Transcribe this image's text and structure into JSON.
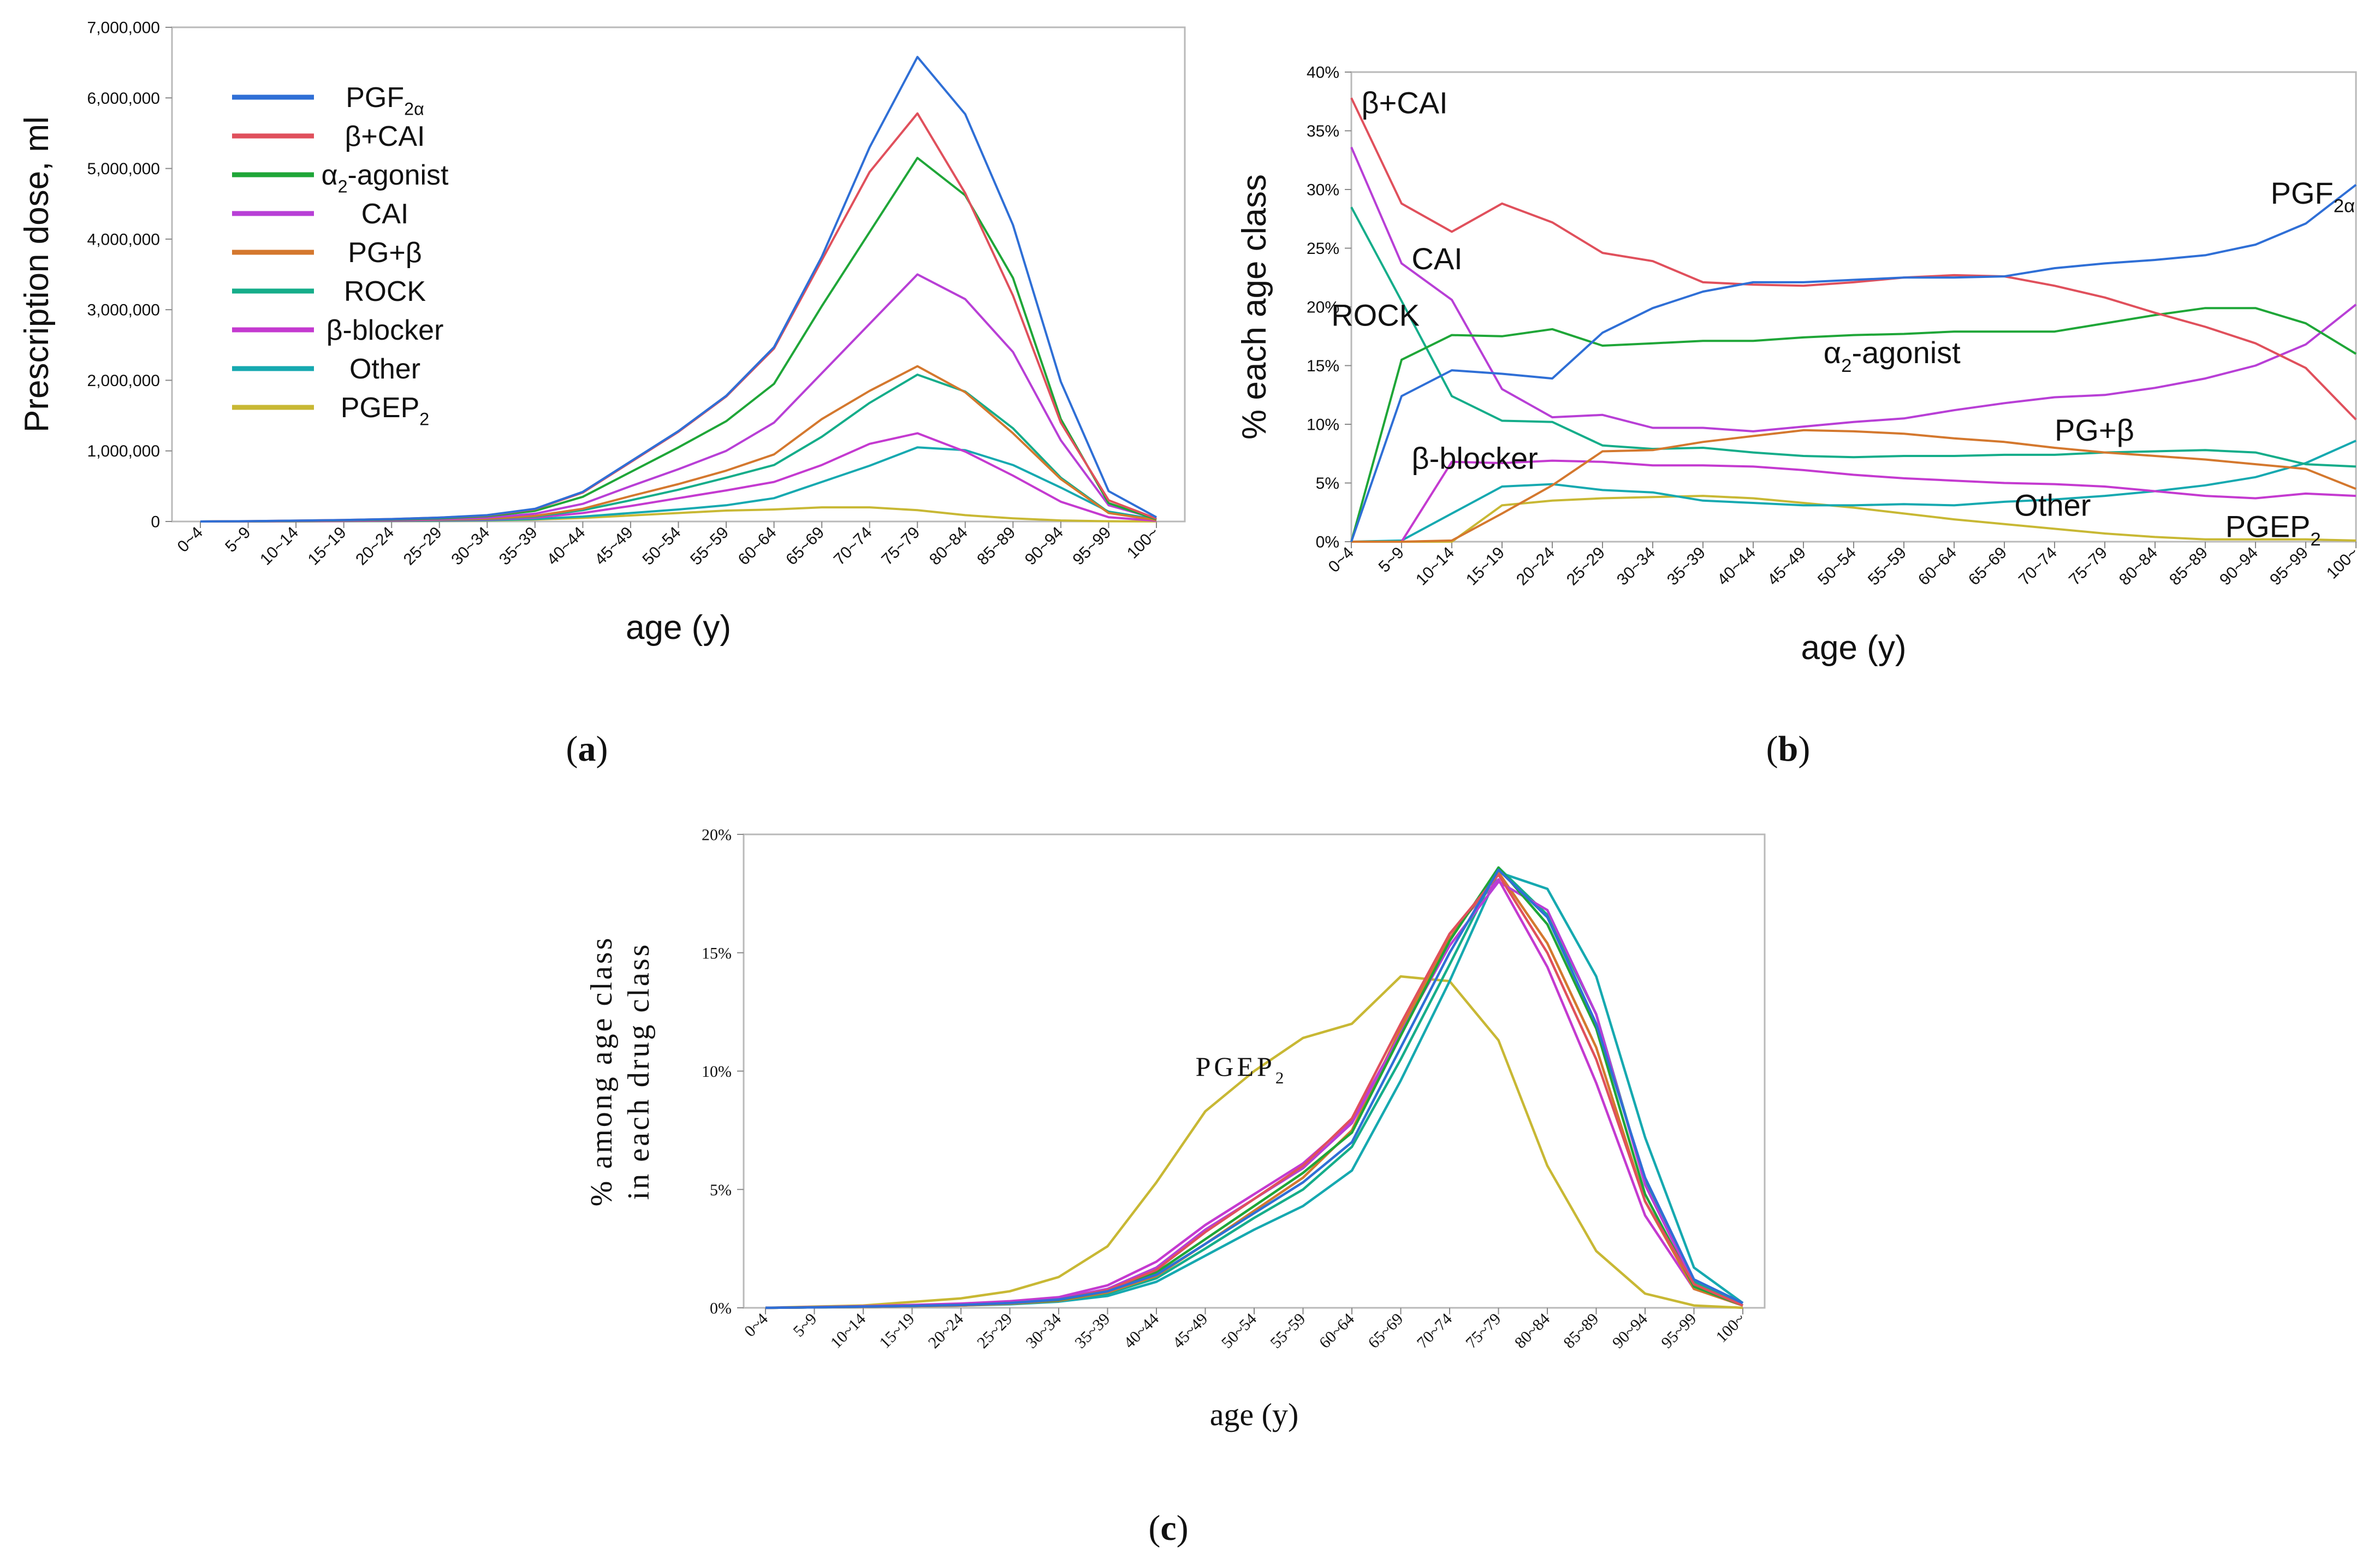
{
  "figure": {
    "panel_labels": [
      "(a)",
      "(b)",
      "(c)"
    ],
    "panel_letters": [
      "a",
      "b",
      "c"
    ]
  },
  "colors": {
    "PGF2a": "#2f6fd6",
    "BCAI": "#e0505c",
    "a2agonist": "#1fa638",
    "CAI": "#b83fd6",
    "PGB": "#d4782e",
    "ROCK": "#15ad8a",
    "bblocker": "#c43ad0",
    "Other": "#16a9b0",
    "PGEP2": "#c8b834"
  },
  "chart_data": [
    {
      "id": "a",
      "type": "line",
      "xlabel": "age (y)",
      "ylabel": "Prescription dose, ml",
      "ylim": [
        0,
        7000000
      ],
      "yticks": [
        0,
        1000000,
        2000000,
        3000000,
        4000000,
        5000000,
        6000000,
        7000000
      ],
      "ytick_labels": [
        "0",
        "1,000,000",
        "2,000,000",
        "3,000,000",
        "4,000,000",
        "5,000,000",
        "6,000,000",
        "7,000,000"
      ],
      "categories": [
        "0~4",
        "5~9",
        "10~14",
        "15~19",
        "20~24",
        "25~29",
        "30~34",
        "35~39",
        "40~44",
        "45~49",
        "50~54",
        "55~59",
        "60~64",
        "65~69",
        "70~74",
        "75~79",
        "80~84",
        "85~89",
        "90~94",
        "95~99",
        "100~"
      ],
      "legend": {
        "position": "top-left",
        "entries": [
          {
            "key": "PGF2a",
            "label": "PGF",
            "sub": "2α"
          },
          {
            "key": "BCAI",
            "label": "β+CAI",
            "sub": ""
          },
          {
            "key": "a2agonist",
            "label": "α",
            "sub": "2",
            "label_after": "-agonist"
          },
          {
            "key": "CAI",
            "label": "CAI",
            "sub": ""
          },
          {
            "key": "PGB",
            "label": "PG+β",
            "sub": ""
          },
          {
            "key": "ROCK",
            "label": "ROCK",
            "sub": ""
          },
          {
            "key": "bblocker",
            "label": "β-blocker",
            "sub": ""
          },
          {
            "key": "Other",
            "label": "Other",
            "sub": ""
          },
          {
            "key": "PGEP2",
            "label": "PGEP",
            "sub": "2"
          }
        ]
      },
      "series": [
        {
          "key": "PGF2a",
          "values": [
            0,
            5000,
            12000,
            22000,
            35000,
            55000,
            90000,
            180000,
            420000,
            850000,
            1280000,
            1780000,
            2470000,
            3750000,
            5300000,
            6580000,
            5770000,
            4200000,
            1980000,
            430000,
            60000
          ]
        },
        {
          "key": "BCAI",
          "values": [
            0,
            5000,
            12000,
            22000,
            35000,
            55000,
            85000,
            175000,
            410000,
            840000,
            1270000,
            1770000,
            2450000,
            3700000,
            4950000,
            5780000,
            4650000,
            3200000,
            1400000,
            300000,
            40000
          ]
        },
        {
          "key": "a2agonist",
          "values": [
            0,
            4000,
            10000,
            18000,
            28000,
            45000,
            75000,
            150000,
            350000,
            700000,
            1050000,
            1420000,
            1950000,
            3050000,
            4100000,
            5150000,
            4620000,
            3450000,
            1450000,
            260000,
            30000
          ]
        },
        {
          "key": "CAI",
          "values": [
            0,
            3000,
            7000,
            12000,
            20000,
            32000,
            55000,
            110000,
            250000,
            500000,
            740000,
            1000000,
            1400000,
            2100000,
            2800000,
            3500000,
            3150000,
            2400000,
            1150000,
            230000,
            40000
          ]
        },
        {
          "key": "PGB",
          "values": [
            0,
            2000,
            5000,
            10000,
            16000,
            26000,
            40000,
            80000,
            180000,
            360000,
            530000,
            720000,
            950000,
            1450000,
            1850000,
            2200000,
            1830000,
            1250000,
            600000,
            120000,
            20000
          ]
        },
        {
          "key": "ROCK",
          "values": [
            0,
            2000,
            5000,
            9000,
            14000,
            22000,
            35000,
            70000,
            160000,
            300000,
            450000,
            620000,
            800000,
            1200000,
            1680000,
            2080000,
            1840000,
            1320000,
            620000,
            130000,
            20000
          ]
        },
        {
          "key": "bblocker",
          "values": [
            0,
            1500,
            3500,
            6000,
            10000,
            16000,
            26000,
            55000,
            120000,
            220000,
            330000,
            440000,
            560000,
            800000,
            1100000,
            1250000,
            990000,
            650000,
            280000,
            60000,
            10000
          ]
        },
        {
          "key": "Other",
          "values": [
            0,
            1000,
            2500,
            4500,
            7000,
            11000,
            18000,
            35000,
            70000,
            120000,
            170000,
            230000,
            330000,
            560000,
            790000,
            1050000,
            1010000,
            800000,
            480000,
            140000,
            30000
          ]
        },
        {
          "key": "PGEP2",
          "values": [
            0,
            1000,
            2000,
            3000,
            5000,
            8000,
            14000,
            28000,
            50000,
            85000,
            120000,
            155000,
            170000,
            200000,
            200000,
            160000,
            90000,
            45000,
            15000,
            3000,
            500
          ]
        }
      ]
    },
    {
      "id": "b",
      "type": "line",
      "xlabel": "age (y)",
      "ylabel": "% each age class",
      "ylim": [
        0,
        40
      ],
      "yticks": [
        0,
        5,
        10,
        15,
        20,
        25,
        30,
        35,
        40
      ],
      "ytick_labels": [
        "0%",
        "5%",
        "10%",
        "15%",
        "20%",
        "25%",
        "30%",
        "35%",
        "40%"
      ],
      "categories": [
        "0~4",
        "5~9",
        "10~14",
        "15~19",
        "20~24",
        "25~29",
        "30~34",
        "35~39",
        "40~44",
        "45~49",
        "50~54",
        "55~59",
        "60~64",
        "65~69",
        "70~74",
        "75~79",
        "80~84",
        "85~89",
        "90~94",
        "95~99",
        "100~"
      ],
      "annotations": [
        {
          "key": "BCAI",
          "text": "β+CAI",
          "sub": "",
          "x": 0.2,
          "y": 36.5
        },
        {
          "key": "CAI",
          "text": "CAI",
          "sub": "",
          "x": 1.2,
          "y": 23.2
        },
        {
          "key": "ROCK",
          "text": "ROCK",
          "sub": "",
          "x": -0.4,
          "y": 18.4
        },
        {
          "key": "a2agonist",
          "text": "α",
          "sub": "2",
          "text_after": "-agonist",
          "x": 9.4,
          "y": 15.2
        },
        {
          "key": "bblocker",
          "text": "β-blocker",
          "sub": "",
          "x": 1.2,
          "y": 6.2
        },
        {
          "key": "PGB",
          "text": "PG+β",
          "sub": "",
          "x": 14.0,
          "y": 8.6
        },
        {
          "key": "Other",
          "text": "Other",
          "sub": "",
          "x": 13.2,
          "y": 2.2
        },
        {
          "key": "PGF2a",
          "text": "PGF",
          "sub": "2α",
          "x": 18.3,
          "y": 28.8
        },
        {
          "key": "PGEP2",
          "text": "PGEP",
          "sub": "2",
          "x": 17.4,
          "y": 0.4
        }
      ],
      "series": [
        {
          "key": "PGF2a",
          "values": [
            0,
            12.4,
            14.6,
            14.3,
            13.9,
            17.8,
            19.9,
            21.3,
            22.1,
            22.1,
            22.3,
            22.5,
            22.5,
            22.6,
            23.3,
            23.7,
            24.0,
            24.4,
            25.3,
            27.1,
            30.4
          ]
        },
        {
          "key": "BCAI",
          "values": [
            37.8,
            28.8,
            26.4,
            28.8,
            27.2,
            24.6,
            23.9,
            22.1,
            21.9,
            21.8,
            22.1,
            22.5,
            22.7,
            22.6,
            21.8,
            20.8,
            19.5,
            18.3,
            16.9,
            14.8,
            10.4
          ]
        },
        {
          "key": "a2agonist",
          "values": [
            0,
            15.5,
            17.6,
            17.5,
            18.1,
            16.7,
            16.9,
            17.1,
            17.1,
            17.4,
            17.6,
            17.7,
            17.9,
            17.9,
            17.9,
            18.6,
            19.3,
            19.9,
            19.9,
            18.6,
            16.0
          ]
        },
        {
          "key": "CAI",
          "values": [
            33.6,
            23.7,
            20.6,
            13.0,
            10.6,
            10.8,
            9.7,
            9.7,
            9.4,
            9.8,
            10.2,
            10.5,
            11.2,
            11.8,
            12.3,
            12.5,
            13.1,
            13.9,
            15.0,
            16.8,
            20.2
          ]
        },
        {
          "key": "PGB",
          "values": [
            0,
            0,
            0.1,
            2.4,
            4.8,
            7.7,
            7.8,
            8.5,
            9.0,
            9.5,
            9.4,
            9.2,
            8.8,
            8.5,
            8.0,
            7.6,
            7.3,
            7.0,
            6.6,
            6.2,
            4.5
          ]
        },
        {
          "key": "ROCK",
          "values": [
            28.5,
            20.5,
            12.4,
            10.3,
            10.2,
            8.2,
            7.9,
            8.0,
            7.6,
            7.3,
            7.2,
            7.3,
            7.3,
            7.4,
            7.4,
            7.6,
            7.7,
            7.8,
            7.6,
            6.6,
            6.4
          ]
        },
        {
          "key": "bblocker",
          "values": [
            0,
            0,
            6.8,
            6.7,
            6.9,
            6.8,
            6.5,
            6.5,
            6.4,
            6.1,
            5.7,
            5.4,
            5.2,
            5.0,
            4.9,
            4.7,
            4.3,
            3.9,
            3.7,
            4.1,
            3.9
          ]
        },
        {
          "key": "Other",
          "values": [
            0,
            0.1,
            2.4,
            4.7,
            4.9,
            4.4,
            4.2,
            3.5,
            3.3,
            3.1,
            3.1,
            3.2,
            3.1,
            3.4,
            3.6,
            3.9,
            4.3,
            4.8,
            5.5,
            6.7,
            8.6
          ]
        },
        {
          "key": "PGEP2",
          "values": [
            0,
            0,
            0,
            3.1,
            3.5,
            3.7,
            3.8,
            3.9,
            3.7,
            3.3,
            2.9,
            2.4,
            1.9,
            1.5,
            1.1,
            0.7,
            0.4,
            0.2,
            0.2,
            0.2,
            0.1
          ]
        }
      ]
    },
    {
      "id": "c",
      "type": "line",
      "xlabel": "age (y)",
      "ylabel_line1": "% among age class",
      "ylabel_line2": "in each drug class",
      "ylim": [
        0,
        20
      ],
      "yticks": [
        0,
        5,
        10,
        15,
        20
      ],
      "ytick_labels": [
        "0%",
        "5%",
        "10%",
        "15%",
        "20%"
      ],
      "categories": [
        "0~4",
        "5~9",
        "10~14",
        "15~19",
        "20~24",
        "25~29",
        "30~34",
        "35~39",
        "40~44",
        "45~49",
        "50~54",
        "55~59",
        "60~64",
        "65~69",
        "70~74",
        "75~79",
        "80~84",
        "85~89",
        "90~94",
        "95~99",
        "100~"
      ],
      "annotations": [
        {
          "key": "PGEP2",
          "text": "PGEP",
          "sub": "2",
          "x": 8.8,
          "y": 9.8
        }
      ],
      "series": [
        {
          "key": "PGF2a",
          "values": [
            0,
            0.02,
            0.05,
            0.08,
            0.12,
            0.2,
            0.35,
            0.7,
            1.4,
            2.7,
            4.0,
            5.3,
            7.0,
            11.0,
            15.0,
            18.5,
            16.5,
            12.0,
            5.5,
            1.2,
            0.2
          ]
        },
        {
          "key": "BCAI",
          "values": [
            0,
            0.02,
            0.05,
            0.08,
            0.12,
            0.2,
            0.35,
            0.75,
            1.6,
            3.2,
            4.6,
            6.0,
            8.0,
            12.0,
            15.8,
            18.3,
            15.0,
            10.5,
            4.5,
            1.0,
            0.1
          ]
        },
        {
          "key": "a2agonist",
          "values": [
            0,
            0.02,
            0.05,
            0.08,
            0.12,
            0.2,
            0.33,
            0.7,
            1.5,
            2.9,
            4.3,
            5.7,
            7.4,
            11.5,
            15.5,
            18.6,
            16.2,
            11.8,
            4.8,
            0.9,
            0.1
          ]
        },
        {
          "key": "CAI",
          "values": [
            0,
            0.03,
            0.06,
            0.1,
            0.14,
            0.22,
            0.4,
            0.8,
            1.7,
            3.3,
            4.6,
            5.9,
            7.8,
            11.6,
            15.3,
            18.0,
            16.8,
            12.4,
            5.2,
            1.0,
            0.1
          ]
        },
        {
          "key": "PGB",
          "values": [
            0,
            0.02,
            0.04,
            0.07,
            0.1,
            0.18,
            0.3,
            0.65,
            1.35,
            2.7,
            4.1,
            5.5,
            7.5,
            11.8,
            15.6,
            18.4,
            15.4,
            11.0,
            4.5,
            0.8,
            0.1
          ]
        },
        {
          "key": "ROCK",
          "values": [
            0,
            0.02,
            0.04,
            0.07,
            0.1,
            0.17,
            0.3,
            0.6,
            1.25,
            2.5,
            3.8,
            5.0,
            6.8,
            10.5,
            14.5,
            18.6,
            16.6,
            12.4,
            5.3,
            1.1,
            0.1
          ]
        },
        {
          "key": "bblocker",
          "values": [
            0,
            0.03,
            0.07,
            0.12,
            0.18,
            0.28,
            0.45,
            0.95,
            1.95,
            3.5,
            4.8,
            6.1,
            7.9,
            11.6,
            15.8,
            18.1,
            14.4,
            9.5,
            3.9,
            0.8,
            0.1
          ]
        },
        {
          "key": "Other",
          "values": [
            0,
            0.02,
            0.04,
            0.07,
            0.1,
            0.15,
            0.26,
            0.5,
            1.1,
            2.2,
            3.3,
            4.3,
            5.8,
            9.6,
            13.8,
            18.4,
            17.7,
            14.0,
            7.2,
            1.7,
            0.2
          ]
        },
        {
          "key": "PGEP2",
          "values": [
            0,
            0.05,
            0.1,
            0.25,
            0.4,
            0.7,
            1.3,
            2.6,
            5.3,
            8.3,
            10.0,
            11.4,
            12.0,
            14.0,
            13.8,
            11.3,
            6.0,
            2.4,
            0.6,
            0.1,
            0
          ]
        }
      ]
    }
  ]
}
